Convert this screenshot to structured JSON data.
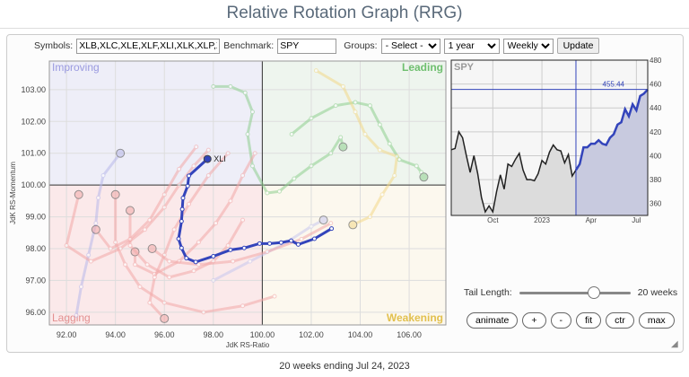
{
  "page_title": "Relative Rotation Graph (RRG)",
  "toolbar": {
    "symbols_label": "Symbols:",
    "symbols_value": "XLB,XLC,XLE,XLF,XLI,XLK,XLP,XLRE,XLU,XLV,XLY",
    "benchmark_label": "Benchmark:",
    "benchmark_value": "SPY",
    "groups_label": "Groups:",
    "groups_value": "- Select -",
    "period_value": "1 year",
    "frequency_value": "Weekly",
    "update_label": "Update"
  },
  "rrg": {
    "xlabel": "JdK RS-Ratio",
    "ylabel": "JdK RS-Momentum",
    "xlim": [
      91.3,
      107.5
    ],
    "ylim": [
      95.6,
      103.9
    ],
    "xticks": [
      "92.00",
      "94.00",
      "96.00",
      "98.00",
      "100.00",
      "102.00",
      "104.00",
      "106.00"
    ],
    "yticks": [
      "96.00",
      "97.00",
      "98.00",
      "99.00",
      "100.00",
      "101.00",
      "102.00",
      "103.00"
    ],
    "quadrants": {
      "improving": "Improving",
      "leading": "Leading",
      "lagging": "Lagging",
      "weakening": "Weakening"
    },
    "colors": {
      "improving": "#eeeef8",
      "leading": "#eef5ee",
      "lagging": "#fbe9ea",
      "weakening": "#fcf8ee",
      "improving_text": "#9a9ae0",
      "leading_text": "#6fbf6f",
      "lagging_text": "#e39090",
      "weakening_text": "#e2c04e",
      "highlight": "#3344bb"
    },
    "highlight": {
      "name": "XLI",
      "points": [
        [
          102.83,
          98.63
        ],
        [
          102.13,
          98.31
        ],
        [
          101.47,
          98.13
        ],
        [
          101.18,
          98.25
        ],
        [
          100.77,
          98.19
        ],
        [
          100.3,
          98.16
        ],
        [
          99.89,
          98.16
        ],
        [
          99.26,
          98.02
        ],
        [
          98.7,
          97.96
        ],
        [
          98.0,
          97.76
        ],
        [
          97.28,
          97.58
        ],
        [
          96.9,
          97.7
        ],
        [
          96.7,
          98.02
        ],
        [
          96.58,
          98.31
        ],
        [
          96.7,
          98.86
        ],
        [
          96.73,
          99.24
        ],
        [
          96.76,
          99.59
        ],
        [
          96.95,
          99.97
        ],
        [
          97.0,
          100.29
        ],
        [
          97.76,
          100.82
        ]
      ]
    },
    "faded_tails": [
      {
        "color": "#8fcf8f",
        "points": [
          [
            101.2,
            101.6
          ],
          [
            102.0,
            102.1
          ],
          [
            103.0,
            102.5
          ],
          [
            103.8,
            102.6
          ],
          [
            104.4,
            102.5
          ],
          [
            104.8,
            101.9
          ],
          [
            105.2,
            101.3
          ],
          [
            105.6,
            100.8
          ],
          [
            106.3,
            100.6
          ],
          [
            106.5,
            100.4
          ],
          [
            106.6,
            100.25
          ]
        ]
      },
      {
        "color": "#8fcf8f",
        "points": [
          [
            98.0,
            103.1
          ],
          [
            98.7,
            103.1
          ],
          [
            99.3,
            102.9
          ],
          [
            99.6,
            102.3
          ],
          [
            99.4,
            101.6
          ],
          [
            99.6,
            100.6
          ],
          [
            100.2,
            99.75
          ],
          [
            100.7,
            99.8
          ],
          [
            101.3,
            100.2
          ],
          [
            102.0,
            100.6
          ],
          [
            102.8,
            101.0
          ],
          [
            103.2,
            101.5
          ],
          [
            103.3,
            101.2
          ]
        ]
      },
      {
        "color": "#f3d98a",
        "points": [
          [
            102.2,
            103.6
          ],
          [
            103.3,
            103.1
          ],
          [
            103.8,
            102.3
          ],
          [
            104.2,
            101.6
          ],
          [
            104.8,
            101.1
          ],
          [
            105.5,
            100.9
          ],
          [
            105.4,
            100.3
          ],
          [
            104.9,
            99.7
          ],
          [
            104.4,
            99.0
          ],
          [
            103.7,
            98.75
          ]
        ]
      },
      {
        "color": "#b8b8ea",
        "points": [
          [
            92.4,
            95.9
          ],
          [
            92.6,
            96.8
          ],
          [
            92.9,
            97.8
          ],
          [
            93.2,
            98.8
          ],
          [
            93.3,
            99.6
          ],
          [
            93.5,
            100.3
          ],
          [
            94.2,
            101.0
          ]
        ]
      },
      {
        "color": "#c8c8ee",
        "points": [
          [
            98.0,
            97.0
          ],
          [
            99.5,
            97.6
          ],
          [
            101.0,
            98.2
          ],
          [
            102.0,
            98.7
          ],
          [
            102.5,
            98.9
          ]
        ]
      },
      {
        "color": "#f2a8a8",
        "points": [
          [
            97.8,
            101.1
          ],
          [
            97.2,
            100.6
          ],
          [
            96.6,
            100.0
          ],
          [
            96.0,
            99.3
          ],
          [
            95.2,
            98.6
          ],
          [
            94.2,
            98.0
          ],
          [
            93.0,
            97.6
          ],
          [
            92.0,
            98.1
          ],
          [
            92.5,
            99.7
          ]
        ]
      },
      {
        "color": "#f2a8a8",
        "points": [
          [
            99.7,
            101.0
          ],
          [
            99.2,
            100.3
          ],
          [
            98.7,
            99.5
          ],
          [
            98.1,
            98.8
          ],
          [
            97.4,
            98.2
          ],
          [
            96.6,
            97.6
          ],
          [
            95.6,
            97.2
          ],
          [
            94.8,
            97.5
          ],
          [
            94.8,
            97.9
          ]
        ]
      },
      {
        "color": "#f2a8a8",
        "points": [
          [
            99.2,
            98.9
          ],
          [
            98.6,
            98.1
          ],
          [
            98.0,
            97.6
          ],
          [
            97.2,
            97.3
          ],
          [
            96.2,
            97.1
          ],
          [
            95.3,
            97.5
          ],
          [
            94.6,
            98.1
          ],
          [
            94.6,
            99.2
          ]
        ]
      },
      {
        "color": "#f2a8a8",
        "points": [
          [
            100.5,
            96.5
          ],
          [
            99.2,
            96.2
          ],
          [
            97.6,
            96.0
          ],
          [
            96.0,
            96.3
          ],
          [
            95.0,
            96.8
          ],
          [
            94.4,
            97.5
          ],
          [
            94.0,
            98.2
          ],
          [
            94.0,
            99.7
          ]
        ]
      },
      {
        "color": "#f2a8a8",
        "points": [
          [
            98.6,
            101.0
          ],
          [
            97.8,
            100.3
          ],
          [
            97.0,
            99.4
          ],
          [
            96.4,
            98.6
          ],
          [
            96.0,
            97.8
          ],
          [
            95.6,
            97.1
          ],
          [
            95.4,
            96.3
          ],
          [
            96.0,
            95.8
          ]
        ]
      },
      {
        "color": "#f2a8a8",
        "points": [
          [
            97.3,
            101.2
          ],
          [
            96.6,
            100.5
          ],
          [
            96.0,
            99.7
          ],
          [
            95.4,
            98.9
          ],
          [
            94.6,
            98.3
          ],
          [
            93.8,
            98.0
          ],
          [
            93.2,
            98.6
          ]
        ]
      },
      {
        "color": "#f2a8a8",
        "points": [
          [
            102.8,
            98.8
          ],
          [
            101.6,
            98.3
          ],
          [
            100.2,
            97.9
          ],
          [
            98.8,
            97.6
          ],
          [
            97.4,
            97.5
          ],
          [
            96.2,
            97.6
          ],
          [
            95.5,
            98.0
          ]
        ]
      }
    ]
  },
  "benchmark_chart": {
    "label": "SPY",
    "last_value": "455.44",
    "ylim": [
      350,
      480
    ],
    "yticks": [
      "360",
      "380",
      "400",
      "420",
      "440",
      "460",
      "480"
    ],
    "xticks": [
      "Oct",
      "2023",
      "Apr",
      "Jul"
    ],
    "values": [
      405,
      406,
      420,
      415,
      400,
      386,
      400,
      385,
      365,
      353,
      358,
      353,
      370,
      384,
      372,
      393,
      391,
      397,
      402,
      388,
      380,
      380,
      379,
      385,
      396,
      393,
      403,
      409,
      405,
      404,
      394,
      401,
      383,
      388,
      393,
      407,
      407,
      410,
      410,
      413,
      410,
      409,
      415,
      418,
      426,
      428,
      439,
      433,
      443,
      438,
      450,
      452,
      455.44
    ],
    "highlight_weeks": 20,
    "line_color": "#222222",
    "highlight_color": "#3344bb"
  },
  "controls": {
    "tail_label": "Tail Length:",
    "tail_value": "20 weeks",
    "tail_fraction": 0.67,
    "buttons": [
      "animate",
      "+",
      "-",
      "fit",
      "ctr",
      "max"
    ]
  },
  "footer": "20 weeks ending Jul 24, 2023"
}
